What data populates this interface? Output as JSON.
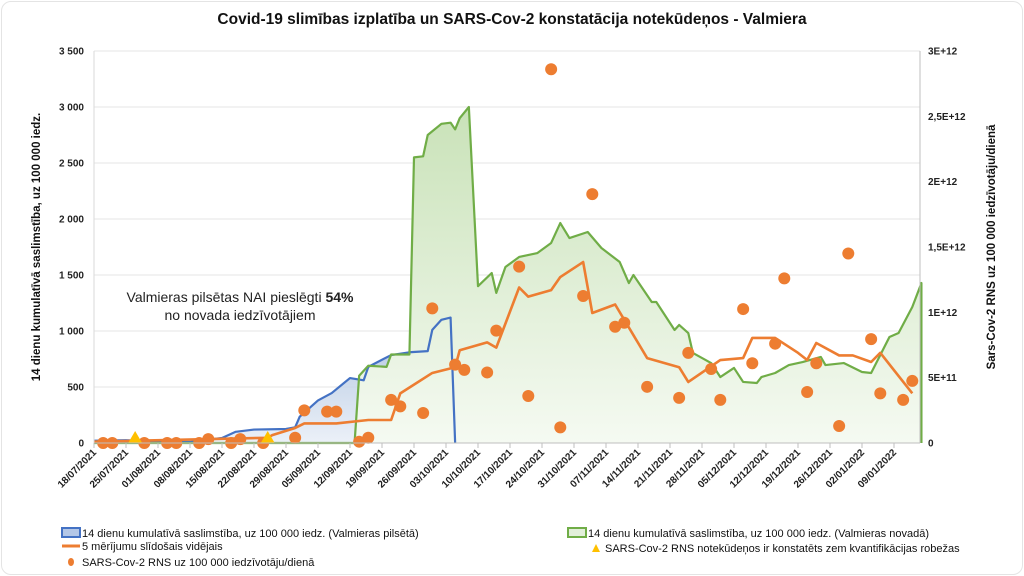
{
  "chart_data": {
    "type": "line",
    "title": "Covid-19 slimības izplatība un SARS-Cov-2 konstatācija notekūdeņos - Valmiera",
    "ylabel_left": "14 dienu kumulatīvā saslimstība, uz 100 000 iedz.",
    "ylabel_right": "Sars-Cov-2 RNS uz 100 000 iedzīvotāju/dienā",
    "ylim_left": [
      0,
      3500
    ],
    "ylim_right": [
      0,
      3000000000000
    ],
    "xlim": [
      "2021-07-18",
      "2022-01-15"
    ],
    "grid": true,
    "legend_position": "bottom",
    "y_ticks_left": [
      "0",
      "500",
      "1 000",
      "1 500",
      "2 000",
      "2 500",
      "3 000",
      "3 500"
    ],
    "y_ticks_right": [
      "0",
      "5E+11",
      "1E+12",
      "1,5E+12",
      "2E+12",
      "2,5E+12",
      "3E+12"
    ],
    "x_ticks": [
      "18/07/2021",
      "25/07/2021",
      "01/08/2021",
      "08/08/2021",
      "15/08/2021",
      "22/08/2021",
      "29/08/2021",
      "05/09/2021",
      "12/09/2021",
      "19/09/2021",
      "26/09/2021",
      "03/10/2021",
      "10/10/2021",
      "17/10/2021",
      "24/10/2021",
      "31/10/2021",
      "07/11/2021",
      "14/11/2021",
      "21/11/2021",
      "28/11/2021",
      "05/12/2021",
      "12/12/2021",
      "19/12/2021",
      "26/12/2021",
      "02/01/2022",
      "09/01/2022"
    ],
    "annotation": {
      "line1": "Valmieras pilsētas NAI pieslēgti ",
      "line1_bold": "54%",
      "line2": "no novada iedzīvotājiem"
    },
    "series": [
      {
        "name": "14 dienu kumulatīvā saslimstība, uz 100 000 iedz. (Valmieras pilsētā)",
        "kind": "area",
        "axis": "left",
        "color": "#4472c4",
        "x": [
          "2021-07-18",
          "2021-07-25",
          "2021-08-01",
          "2021-08-08",
          "2021-08-15",
          "2021-08-18",
          "2021-08-22",
          "2021-08-29",
          "2021-08-31",
          "2021-09-01",
          "2021-09-05",
          "2021-09-08",
          "2021-09-12",
          "2021-09-15",
          "2021-09-16",
          "2021-09-21",
          "2021-09-25",
          "2021-09-29",
          "2021-09-30",
          "2021-10-02",
          "2021-10-04",
          "2021-10-05"
        ],
        "y": [
          20,
          25,
          10,
          10,
          45,
          100,
          120,
          125,
          140,
          235,
          380,
          446,
          580,
          560,
          680,
          785,
          810,
          820,
          1010,
          1100,
          1120,
          0
        ]
      },
      {
        "name": "14 dienu kumulatīvā saslimstība, uz 100 000 iedz. (Valmieras novadā)",
        "kind": "area",
        "axis": "left",
        "color": "#70ad47",
        "x": [
          "2021-07-18",
          "2021-09-13",
          "2021-09-14",
          "2021-09-16",
          "2021-09-20",
          "2021-09-21",
          "2021-09-25",
          "2021-09-26",
          "2021-09-28",
          "2021-09-29",
          "2021-10-02",
          "2021-10-04",
          "2021-10-05",
          "2021-10-06",
          "2021-10-08",
          "2021-10-10",
          "2021-10-13",
          "2021-10-14",
          "2021-10-16",
          "2021-10-19",
          "2021-10-23",
          "2021-10-26",
          "2021-10-28",
          "2021-10-30",
          "2021-11-03",
          "2021-11-06",
          "2021-11-10",
          "2021-11-12",
          "2021-11-13",
          "2021-11-17",
          "2021-11-18",
          "2021-11-22",
          "2021-11-23",
          "2021-11-25",
          "2021-11-26",
          "2021-11-30",
          "2021-12-02",
          "2021-12-05",
          "2021-12-07",
          "2021-12-10",
          "2021-12-11",
          "2021-12-14",
          "2021-12-17",
          "2021-12-20",
          "2021-12-24",
          "2021-12-25",
          "2021-12-29",
          "2022-01-02",
          "2022-01-04",
          "2022-01-08",
          "2022-01-10",
          "2022-01-13",
          "2022-01-15",
          "2022-01-15"
        ],
        "y": [
          0,
          0,
          600,
          690,
          680,
          790,
          790,
          2550,
          2560,
          2750,
          2850,
          2860,
          2800,
          2900,
          3000,
          1400,
          1518,
          1340,
          1571,
          1661,
          1696,
          1786,
          1964,
          1830,
          1884,
          1741,
          1616,
          1428,
          1500,
          1259,
          1259,
          1009,
          1054,
          982,
          804,
          714,
          589,
          670,
          545,
          536,
          589,
          625,
          696,
          723,
          768,
          696,
          714,
          634,
          625,
          946,
          982,
          1214,
          1428,
          0
        ]
      },
      {
        "name": "5 mērījumu slīdošais vidējais",
        "kind": "line",
        "axis": "right",
        "color": "#ed7d31",
        "x": [
          "2021-07-18",
          "2021-08-25",
          "2021-08-26",
          "2021-08-31",
          "2021-09-02",
          "2021-09-09",
          "2021-09-16",
          "2021-09-21",
          "2021-09-23",
          "2021-09-30",
          "2021-10-05",
          "2021-10-06",
          "2021-10-12",
          "2021-10-14",
          "2021-10-19",
          "2021-10-21",
          "2021-10-26",
          "2021-10-28",
          "2021-11-02",
          "2021-11-04",
          "2021-11-09",
          "2021-11-16",
          "2021-11-23",
          "2021-11-25",
          "2021-12-02",
          "2021-12-07",
          "2021-12-09",
          "2021-12-14",
          "2021-12-19",
          "2021-12-21",
          "2021-12-23",
          "2021-12-28",
          "2021-12-31",
          "2022-01-04",
          "2022-01-06",
          "2022-01-13"
        ],
        "y": [
          10000000000.0,
          40000000000.0,
          60000000000.0,
          115000000000.0,
          150000000000.0,
          150000000000.0,
          176000000000.0,
          176000000000.0,
          380000000000.0,
          536000000000.0,
          580000000000.0,
          710000000000.0,
          770000000000.0,
          730000000000.0,
          1190000000000.0,
          1120000000000.0,
          1170000000000.0,
          1270000000000.0,
          1385000000000.0,
          995000000000.0,
          1060000000000.0,
          650000000000.0,
          580000000000.0,
          467000000000.0,
          635000000000.0,
          650000000000.0,
          804000000000.0,
          804000000000.0,
          690000000000.0,
          635000000000.0,
          765000000000.0,
          670000000000.0,
          670000000000.0,
          620000000000.0,
          690000000000.0,
          380000000000.0
        ]
      },
      {
        "name": "SARS-Cov-2 RNS uz 100 000 iedzīvotāju/dienā",
        "kind": "scatter",
        "axis": "right",
        "color": "#ed7d31",
        "x": [
          "2021-07-20",
          "2021-07-22",
          "2021-07-29",
          "2021-08-03",
          "2021-08-05",
          "2021-08-10",
          "2021-08-12",
          "2021-08-17",
          "2021-08-19",
          "2021-08-24",
          "2021-08-31",
          "2021-09-02",
          "2021-09-07",
          "2021-09-09",
          "2021-09-14",
          "2021-09-16",
          "2021-09-21",
          "2021-09-23",
          "2021-09-28",
          "2021-09-30",
          "2021-10-05",
          "2021-10-07",
          "2021-10-12",
          "2021-10-14",
          "2021-10-19",
          "2021-10-21",
          "2021-10-26",
          "2021-10-28",
          "2021-11-02",
          "2021-11-04",
          "2021-11-09",
          "2021-11-11",
          "2021-11-16",
          "2021-11-23",
          "2021-11-25",
          "2021-11-30",
          "2021-12-02",
          "2021-12-07",
          "2021-12-09",
          "2021-12-14",
          "2021-12-16",
          "2021-12-21",
          "2021-12-23",
          "2021-12-28",
          "2021-12-30",
          "2022-01-04",
          "2022-01-06",
          "2022-01-11",
          "2022-01-13"
        ],
        "y": [
          0,
          0,
          0,
          0,
          0,
          0,
          30000000000.0,
          0,
          30000000000.0,
          0,
          40000000000.0,
          250000000000.0,
          240000000000.0,
          240000000000.0,
          10000000000.0,
          40000000000.0,
          330000000000.0,
          280000000000.0,
          230000000000.0,
          1030000000000.0,
          600000000000.0,
          560000000000.0,
          540000000000.0,
          860000000000.0,
          1350000000000.0,
          360000000000.0,
          2860000000000.0,
          120000000000.0,
          1125000000000.0,
          1905000000000.0,
          890000000000.0,
          920000000000.0,
          430000000000.0,
          345000000000.0,
          690000000000.0,
          566000000000.0,
          330000000000.0,
          1025000000000.0,
          610000000000.0,
          760000000000.0,
          1260000000000.0,
          390000000000.0,
          610000000000.0,
          130000000000.0,
          1450000000000.0,
          795000000000.0,
          380000000000.0,
          330000000000.0,
          475000000000.0
        ]
      },
      {
        "name": "SARS-Cov-2 RNS notekūdeņos ir konstatēts zem kvantifikācijas robežas",
        "kind": "marker",
        "axis": "right",
        "color": "#ffc000",
        "x": [
          "2021-07-27",
          "2021-08-25"
        ],
        "y": [
          0,
          0
        ]
      }
    ]
  }
}
